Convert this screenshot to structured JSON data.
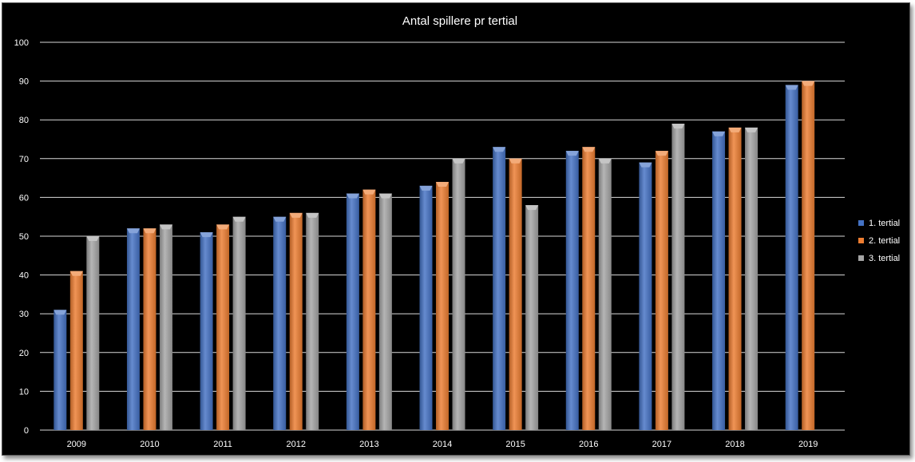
{
  "chart_data": {
    "type": "bar",
    "title": "Antal spillere pr tertial",
    "xlabel": "",
    "ylabel": "",
    "categories": [
      "2009",
      "2010",
      "2011",
      "2012",
      "2013",
      "2014",
      "2015",
      "2016",
      "2017",
      "2018",
      "2019"
    ],
    "series": [
      {
        "name": "1. tertial",
        "color": "#4472C4",
        "values": [
          31,
          52,
          51,
          55,
          61,
          63,
          73,
          72,
          69,
          77,
          89
        ]
      },
      {
        "name": "2. tertial",
        "color": "#ED7D31",
        "values": [
          41,
          52,
          53,
          56,
          62,
          64,
          70,
          73,
          72,
          78,
          90
        ]
      },
      {
        "name": "3. tertial",
        "color": "#A5A5A5",
        "values": [
          50,
          53,
          55,
          56,
          61,
          70,
          58,
          70,
          79,
          78,
          null
        ]
      }
    ],
    "ylim": [
      0,
      100
    ],
    "yticks": [
      0,
      10,
      20,
      30,
      40,
      50,
      60,
      70,
      80,
      90,
      100
    ],
    "grid": true,
    "legend_position": "right",
    "background_color": "#000000",
    "text_color": "#ffffff"
  }
}
